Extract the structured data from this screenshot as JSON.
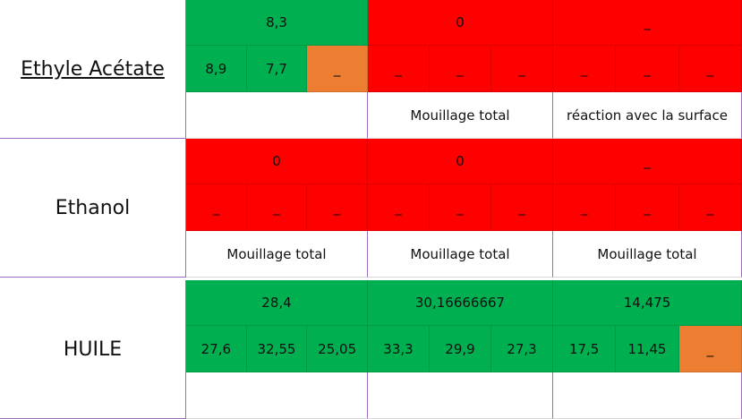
{
  "rows": [
    {
      "label": "Ethyle Acétate",
      "groups": [
        {
          "average": {
            "text": "8,3",
            "color": "#00b050"
          },
          "values": [
            {
              "text": "8,9",
              "color": "#00b050"
            },
            {
              "text": "7,7",
              "color": "#00b050"
            },
            {
              "text": "_",
              "color": "#ed7d31"
            }
          ],
          "note": null
        },
        {
          "average": {
            "text": "0",
            "color": "#ff0000"
          },
          "values": [
            {
              "text": "_",
              "color": "#ff0000"
            },
            {
              "text": "_",
              "color": "#ff0000"
            },
            {
              "text": "_",
              "color": "#ff0000"
            }
          ],
          "note": "Mouillage total"
        },
        {
          "average": {
            "text": "_",
            "color": "#ff0000"
          },
          "values": [
            {
              "text": "_",
              "color": "#ff0000"
            },
            {
              "text": "_",
              "color": "#ff0000"
            },
            {
              "text": "_",
              "color": "#ff0000"
            }
          ],
          "note": "réaction avec la surface"
        }
      ]
    },
    {
      "label": "Ethanol",
      "groups": [
        {
          "average": {
            "text": "0",
            "color": "#ff0000"
          },
          "values": [
            {
              "text": "_",
              "color": "#ff0000"
            },
            {
              "text": "_",
              "color": "#ff0000"
            },
            {
              "text": "_",
              "color": "#ff0000"
            }
          ],
          "note": "Mouillage total"
        },
        {
          "average": {
            "text": "0",
            "color": "#ff0000"
          },
          "values": [
            {
              "text": "_",
              "color": "#ff0000"
            },
            {
              "text": "_",
              "color": "#ff0000"
            },
            {
              "text": "_",
              "color": "#ff0000"
            }
          ],
          "note": "Mouillage total"
        },
        {
          "average": {
            "text": "_",
            "color": "#ff0000"
          },
          "values": [
            {
              "text": "_",
              "color": "#ff0000"
            },
            {
              "text": "_",
              "color": "#ff0000"
            },
            {
              "text": "_",
              "color": "#ff0000"
            }
          ],
          "note": "Mouillage total"
        }
      ]
    },
    {
      "label": "HUILE",
      "groups": [
        {
          "average": {
            "text": "28,4",
            "color": "#00b050"
          },
          "values": [
            {
              "text": "27,6",
              "color": "#00b050"
            },
            {
              "text": "32,55",
              "color": "#00b050"
            },
            {
              "text": "25,05",
              "color": "#00b050"
            }
          ],
          "note": null
        },
        {
          "average": {
            "text": "30,16666667",
            "color": "#00b050"
          },
          "values": [
            {
              "text": "33,3",
              "color": "#00b050"
            },
            {
              "text": "29,9",
              "color": "#00b050"
            },
            {
              "text": "27,3",
              "color": "#00b050"
            }
          ],
          "note": null
        },
        {
          "average": {
            "text": "14,475",
            "color": "#00b050"
          },
          "values": [
            {
              "text": "17,5",
              "color": "#00b050"
            },
            {
              "text": "11,45",
              "color": "#00b050"
            },
            {
              "text": "_",
              "color": "#ed7d31"
            }
          ],
          "note": null
        }
      ]
    }
  ]
}
